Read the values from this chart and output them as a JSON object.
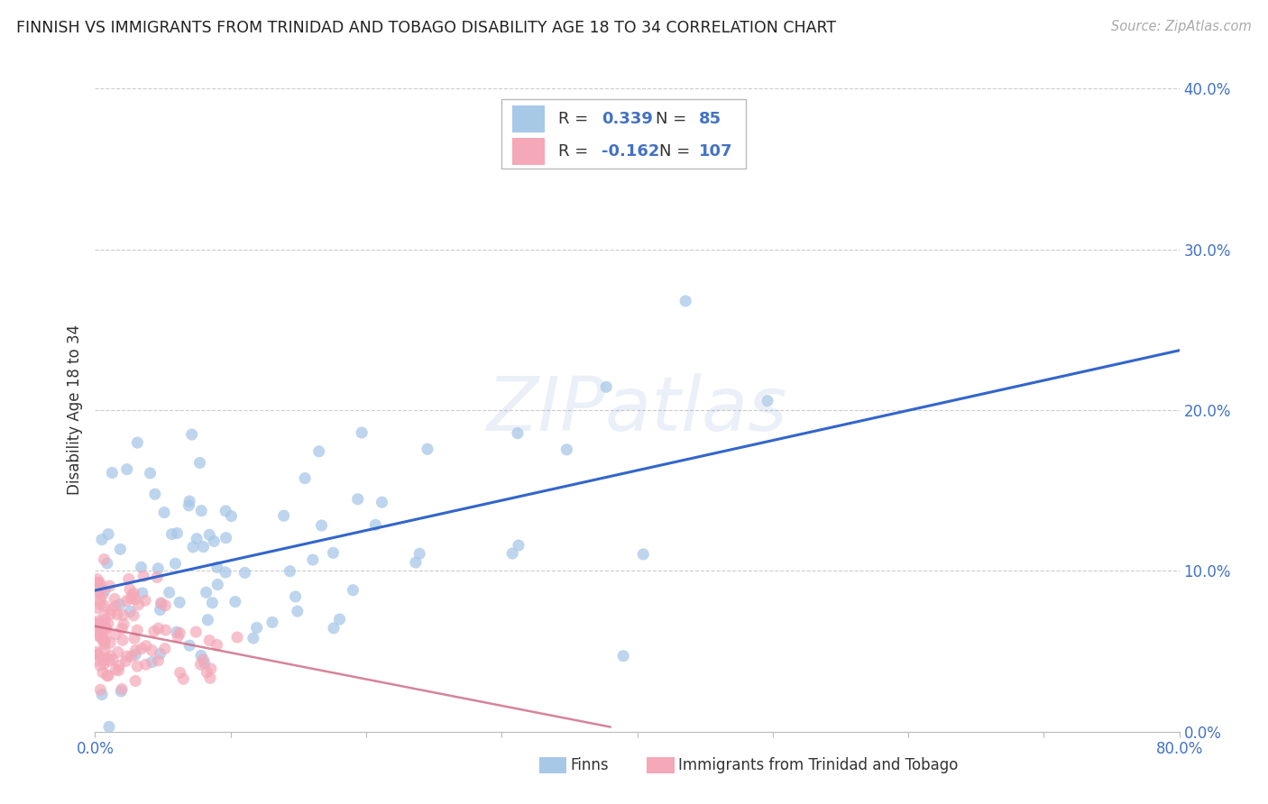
{
  "title": "FINNISH VS IMMIGRANTS FROM TRINIDAD AND TOBAGO DISABILITY AGE 18 TO 34 CORRELATION CHART",
  "source": "Source: ZipAtlas.com",
  "ylabel": "Disability Age 18 to 34",
  "xlim": [
    0.0,
    0.8
  ],
  "ylim": [
    0.0,
    0.4
  ],
  "blue_R": 0.339,
  "blue_N": 85,
  "pink_R": -0.162,
  "pink_N": 107,
  "blue_color": "#a8c8e8",
  "pink_color": "#f4a8b8",
  "blue_line_color": "#3366cc",
  "pink_line_color": "#cc6680",
  "legend_label_blue": "Finns",
  "legend_label_pink": "Immigrants from Trinidad and Tobago",
  "watermark": "ZIPatlas",
  "background_color": "#ffffff",
  "grid_color": "#cccccc",
  "title_color": "#222222",
  "axis_label_color": "#4472c4",
  "text_color": "#333333"
}
